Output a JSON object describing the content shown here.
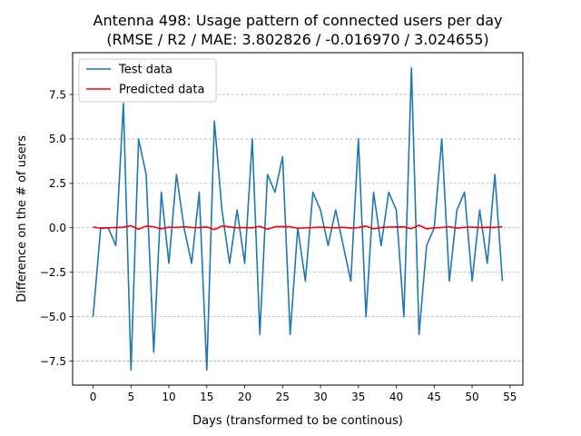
{
  "chart_data": {
    "type": "line",
    "title_lines": [
      "Antenna 498: Usage pattern of connected users per day",
      "(RMSE / R2 / MAE: 3.802826 / -0.016970 / 3.024655)"
    ],
    "xlabel": "Days (transformed to be continous)",
    "ylabel": "Difference on the # of users",
    "xlim": [
      -2.7,
      56.7
    ],
    "ylim": [
      -8.85,
      9.85
    ],
    "x_ticks": [
      0,
      5,
      10,
      15,
      20,
      25,
      30,
      35,
      40,
      45,
      50,
      55
    ],
    "x_tick_labels": [
      "0",
      "5",
      "10",
      "15",
      "20",
      "25",
      "30",
      "35",
      "40",
      "45",
      "50",
      "55"
    ],
    "y_ticks": [
      -7.5,
      -5.0,
      -2.5,
      0.0,
      2.5,
      5.0,
      7.5
    ],
    "y_tick_labels": [
      "−7.5",
      "−5.0",
      "−2.5",
      "0.0",
      "2.5",
      "5.0",
      "7.5"
    ],
    "grid": "y-dashed",
    "legend_position": "top-left",
    "x": [
      0,
      1,
      2,
      3,
      4,
      5,
      6,
      7,
      8,
      9,
      10,
      11,
      12,
      13,
      14,
      15,
      16,
      17,
      18,
      19,
      20,
      21,
      22,
      23,
      24,
      25,
      26,
      27,
      28,
      29,
      30,
      31,
      32,
      33,
      34,
      35,
      36,
      37,
      38,
      39,
      40,
      41,
      42,
      43,
      44,
      45,
      46,
      47,
      48,
      49,
      50,
      51,
      52,
      53,
      54
    ],
    "series": [
      {
        "name": "Test data",
        "color": "#1f77b4",
        "values": [
          -5,
          0,
          0,
          -1,
          7,
          -8,
          5,
          3,
          -7,
          2,
          -2,
          3,
          0,
          -2,
          2,
          -8,
          6,
          1,
          -2,
          1,
          -2,
          5,
          -6,
          3,
          2,
          4,
          -6,
          0,
          -3,
          2,
          1,
          -1,
          1,
          -1,
          -3,
          5,
          -5,
          2,
          -1,
          2,
          1,
          -5,
          9,
          -6,
          -1,
          0,
          5,
          -3,
          1,
          2,
          -3,
          1,
          -2,
          3,
          -3
        ]
      },
      {
        "name": "Predicted data",
        "color": "#ff0000",
        "values": [
          0.05,
          -0.03,
          0.0,
          0.02,
          0.03,
          0.12,
          -0.08,
          0.1,
          0.06,
          -0.06,
          0.04,
          0.02,
          0.06,
          0.02,
          0.01,
          0.05,
          -0.1,
          0.1,
          0.05,
          0.0,
          0.02,
          0.0,
          0.08,
          -0.08,
          0.06,
          0.07,
          0.06,
          -0.03,
          0.0,
          0.01,
          0.04,
          0.02,
          0.0,
          0.03,
          -0.02,
          0.01,
          0.1,
          -0.06,
          0.02,
          0.04,
          0.05,
          0.05,
          -0.05,
          0.15,
          -0.06,
          0.0,
          0.02,
          0.06,
          -0.02,
          0.03,
          0.04,
          0.01,
          0.03,
          0.02,
          0.06
        ]
      }
    ]
  }
}
